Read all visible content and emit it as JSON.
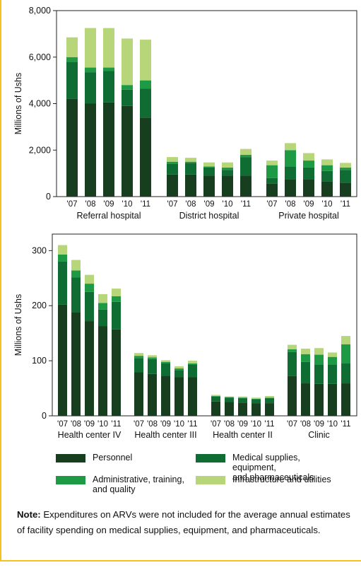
{
  "colors": {
    "personnel": "#173e1f",
    "medical": "#0f6c33",
    "administrative": "#1e9a45",
    "infrastructure": "#b7d67a",
    "frame": "#f5c21b"
  },
  "legend": [
    {
      "key": "personnel",
      "label": "Personnel"
    },
    {
      "key": "medical",
      "label": "Medical supplies, equipment,\nand pharmaceuticals"
    },
    {
      "key": "administrative",
      "label": "Administrative, training,\nand quality"
    },
    {
      "key": "infrastructure",
      "label": "Infrastructure and utilities"
    }
  ],
  "note": {
    "label": "Note:",
    "text": " Expenditures on ARVs were not included for the average annual estimates of facility spending on medical supplies, equipment, and pharmaceuticals."
  },
  "chart_data": [
    {
      "type": "bar",
      "stacked": true,
      "ylabel": "Millions of Ushs",
      "ylim": [
        0,
        8000
      ],
      "yticks": [
        "0",
        "2,000",
        "4,000",
        "6,000",
        "8,000"
      ],
      "ytick_values": [
        0,
        2000,
        4000,
        6000,
        8000
      ],
      "years": [
        "'07",
        "'08",
        "'09",
        "'10",
        "'11"
      ],
      "groups": [
        {
          "name": "Referral hospital",
          "stacks": [
            [
              4200,
              1600,
              200,
              850
            ],
            [
              4000,
              1350,
              200,
              1700
            ],
            [
              4050,
              1350,
              150,
              1700
            ],
            [
              3900,
              700,
              200,
              2000
            ],
            [
              3400,
              1250,
              350,
              1750
            ]
          ]
        },
        {
          "name": "District hospital",
          "stacks": [
            [
              950,
              450,
              100,
              200
            ],
            [
              950,
              500,
              50,
              170
            ],
            [
              900,
              350,
              50,
              170
            ],
            [
              900,
              250,
              100,
              220
            ],
            [
              900,
              800,
              100,
              250
            ]
          ]
        },
        {
          "name": "Private hospital",
          "stacks": [
            [
              550,
              250,
              550,
              200
            ],
            [
              750,
              550,
              700,
              300
            ],
            [
              750,
              500,
              300,
              320
            ],
            [
              650,
              450,
              250,
              250
            ],
            [
              600,
              550,
              100,
              200
            ]
          ]
        }
      ]
    },
    {
      "type": "bar",
      "stacked": true,
      "ylabel": "Millions of Ushs",
      "ylim": [
        0,
        330
      ],
      "yticks": [
        "0",
        "100",
        "200",
        "300"
      ],
      "ytick_values": [
        0,
        100,
        200,
        300
      ],
      "years": [
        "'07",
        "'08",
        "'09",
        "'10",
        "'11"
      ],
      "groups": [
        {
          "name": "Health center IV",
          "stacks": [
            [
              202,
              78,
              13,
              17
            ],
            [
              188,
              63,
              13,
              19
            ],
            [
              172,
              53,
              15,
              16
            ],
            [
              163,
              30,
              12,
              16
            ],
            [
              157,
              50,
              10,
              14
            ]
          ]
        },
        {
          "name": "Health center III",
          "stacks": [
            [
              79,
              26,
              4,
              5
            ],
            [
              76,
              27,
              3,
              4
            ],
            [
              73,
              22,
              3,
              3
            ],
            [
              70,
              13,
              3,
              4
            ],
            [
              70,
              23,
              2,
              5
            ]
          ]
        },
        {
          "name": "Health center II",
          "stacks": [
            [
              26,
              9,
              1,
              2
            ],
            [
              25,
              8,
              1,
              1
            ],
            [
              24,
              8,
              1,
              2
            ],
            [
              23,
              7,
              1,
              2
            ],
            [
              23,
              9,
              1,
              3
            ]
          ]
        },
        {
          "name": "Clinic",
          "stacks": [
            [
              72,
              44,
              5,
              8
            ],
            [
              59,
              39,
              14,
              10
            ],
            [
              58,
              35,
              18,
              12
            ],
            [
              58,
              35,
              14,
              8
            ],
            [
              59,
              36,
              35,
              15
            ]
          ]
        }
      ]
    }
  ]
}
